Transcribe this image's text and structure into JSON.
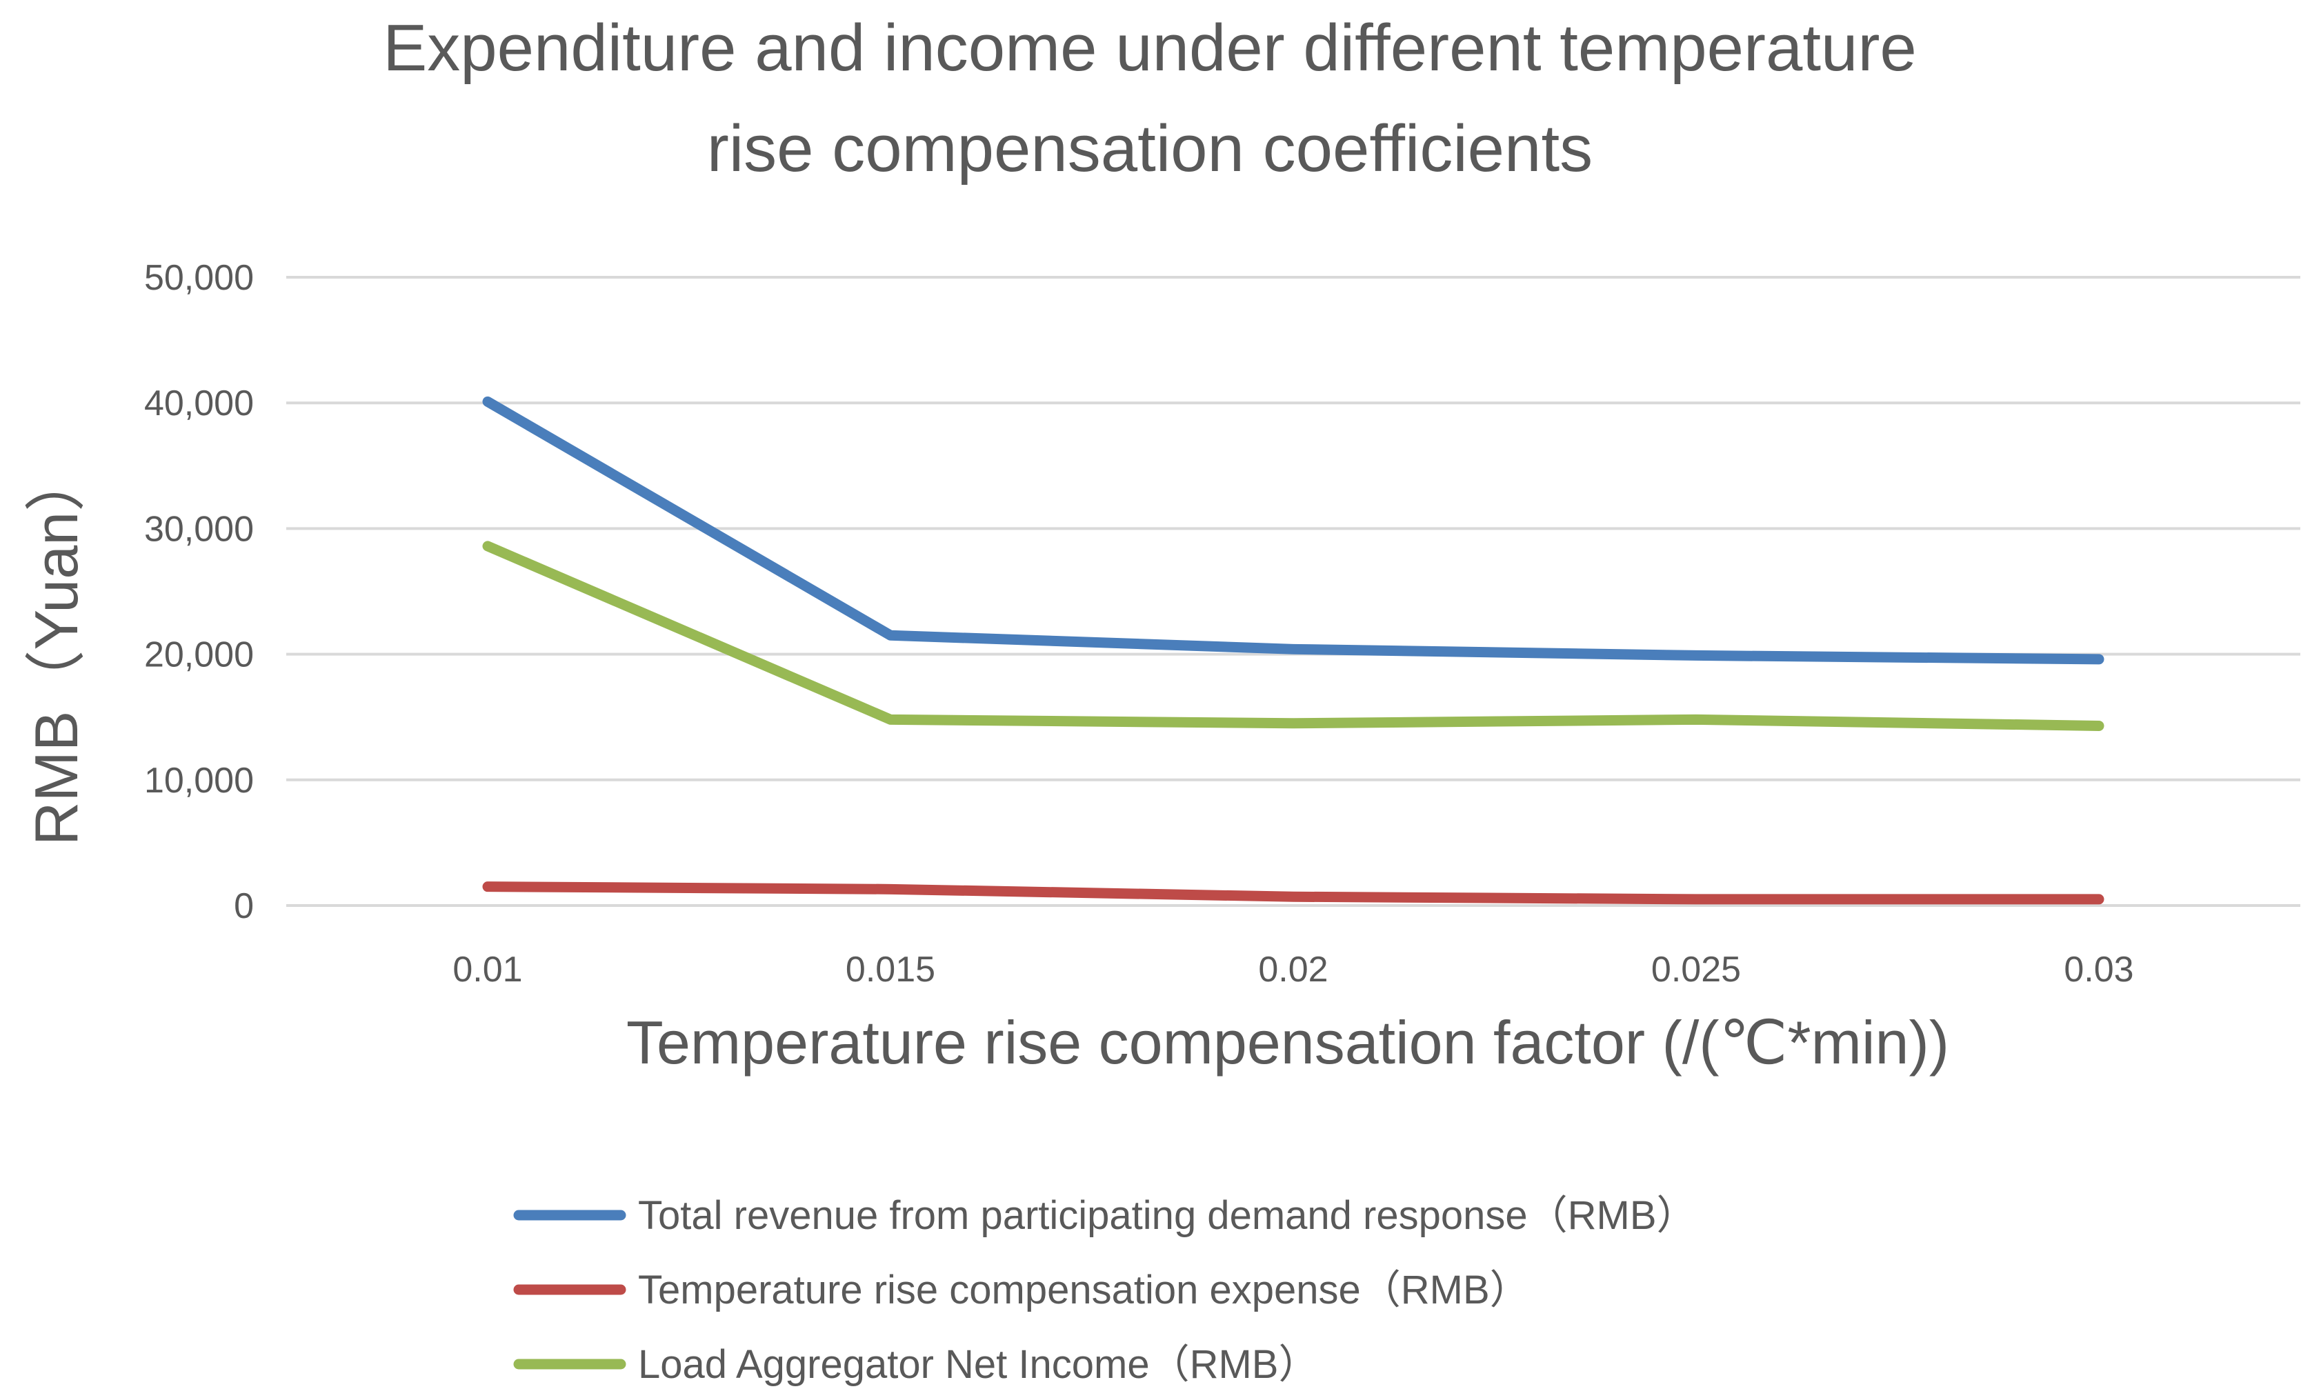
{
  "chart_data": {
    "type": "line",
    "title": [
      "Expenditure and income under different temperature",
      "rise compensation coefficients"
    ],
    "xlabel": "Temperature rise compensation factor (/(℃*min))",
    "ylabel": "RMB（Yuan）",
    "categories": [
      "0.01",
      "0.015",
      "0.02",
      "0.025",
      "0.03"
    ],
    "ylim": [
      0,
      50000
    ],
    "yticks": [
      0,
      10000,
      20000,
      30000,
      40000,
      50000
    ],
    "ytick_labels": [
      "0",
      "10,000",
      "20,000",
      "30,000",
      "40,000",
      "50,000"
    ],
    "grid": true,
    "legend_position": "bottom",
    "series": [
      {
        "name": "Total revenue from participating demand response（RMB）",
        "color": "#4a7ebb",
        "values": [
          40100,
          21500,
          20400,
          19900,
          19600
        ]
      },
      {
        "name": "Temperature rise compensation expense（RMB）",
        "color": "#be4b48",
        "values": [
          1500,
          1300,
          700,
          500,
          500
        ]
      },
      {
        "name": "Load Aggregator Net Income（RMB）",
        "color": "#98b954",
        "values": [
          28600,
          14800,
          14500,
          14800,
          14300
        ]
      }
    ]
  }
}
